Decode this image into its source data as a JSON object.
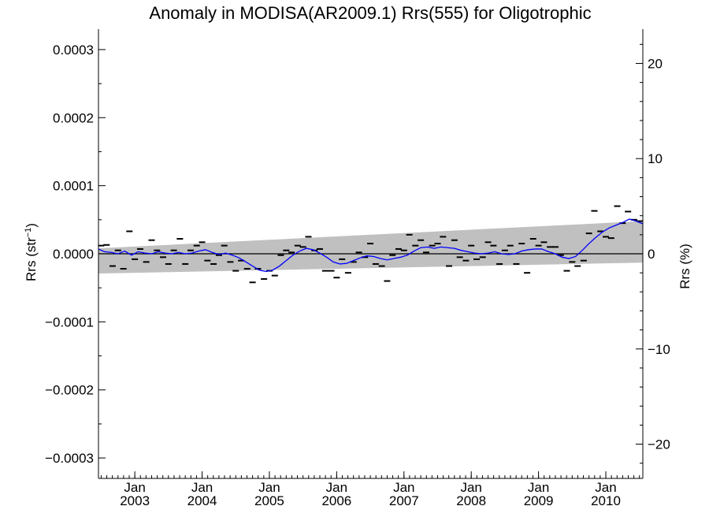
{
  "chart_data": {
    "type": "scatter",
    "title": "Anomaly in MODISA(AR2009.1) Rrs(555) for Oligotrophic",
    "ylabel_left": {
      "base": "Rrs (str",
      "sup": "−1",
      "close": ")"
    },
    "ylabel_right": "Rrs (%)",
    "xlim": [
      2002.46,
      2010.55
    ],
    "ylim": [
      -0.00033,
      0.00033
    ],
    "ylim_right": [
      -23.6,
      23.6
    ],
    "grid": false,
    "x_ticks": [
      {
        "value": 2003.0,
        "month": "Jan",
        "year": "2003"
      },
      {
        "value": 2004.0,
        "month": "Jan",
        "year": "2004"
      },
      {
        "value": 2005.0,
        "month": "Jan",
        "year": "2005"
      },
      {
        "value": 2006.0,
        "month": "Jan",
        "year": "2006"
      },
      {
        "value": 2007.0,
        "month": "Jan",
        "year": "2007"
      },
      {
        "value": 2008.0,
        "month": "Jan",
        "year": "2008"
      },
      {
        "value": 2009.0,
        "month": "Jan",
        "year": "2009"
      },
      {
        "value": 2010.0,
        "month": "Jan",
        "year": "2010"
      }
    ],
    "y_ticks_left": [
      {
        "value": 0.0003,
        "label": "0.0003"
      },
      {
        "value": 0.0002,
        "label": "0.0002"
      },
      {
        "value": 0.0001,
        "label": "0.0001"
      },
      {
        "value": 0.0,
        "label": "0.0000"
      },
      {
        "value": -0.0001,
        "label": "−0.0001"
      },
      {
        "value": -0.0002,
        "label": "−0.0002"
      },
      {
        "value": -0.0003,
        "label": "−0.0003"
      }
    ],
    "y_ticks_right": [
      {
        "value": 20,
        "label": "20"
      },
      {
        "value": 10,
        "label": "10"
      },
      {
        "value": 0,
        "label": "0"
      },
      {
        "value": -10,
        "label": "−10"
      },
      {
        "value": -20,
        "label": "−20"
      }
    ],
    "uncertainty_band": {
      "x": [
        2002.46,
        2010.55
      ],
      "upper": [
        8e-06,
        4.8e-05
      ],
      "lower": [
        -2.9e-05,
        -1.3e-05
      ]
    },
    "zero_line": 0,
    "monthly_points": [
      {
        "x": 2002.5,
        "y": 1.2e-05
      },
      {
        "x": 2002.58,
        "y": 1.3e-05
      },
      {
        "x": 2002.67,
        "y": -1.8e-05
      },
      {
        "x": 2002.75,
        "y": 5e-06
      },
      {
        "x": 2002.83,
        "y": -2.2e-05
      },
      {
        "x": 2002.92,
        "y": 3.3e-05
      },
      {
        "x": 2003.0,
        "y": -8e-06
      },
      {
        "x": 2003.08,
        "y": 7e-06
      },
      {
        "x": 2003.17,
        "y": -1.2e-05
      },
      {
        "x": 2003.25,
        "y": 2e-05
      },
      {
        "x": 2003.33,
        "y": 5e-06
      },
      {
        "x": 2003.42,
        "y": -5e-06
      },
      {
        "x": 2003.5,
        "y": -1.5e-05
      },
      {
        "x": 2003.58,
        "y": 5e-06
      },
      {
        "x": 2003.67,
        "y": 2.2e-05
      },
      {
        "x": 2003.75,
        "y": -1.5e-05
      },
      {
        "x": 2003.83,
        "y": 5e-06
      },
      {
        "x": 2003.92,
        "y": 1.2e-05
      },
      {
        "x": 2004.0,
        "y": 1.7e-05
      },
      {
        "x": 2004.08,
        "y": -1e-05
      },
      {
        "x": 2004.17,
        "y": -1.5e-05
      },
      {
        "x": 2004.25,
        "y": -2e-06
      },
      {
        "x": 2004.33,
        "y": 1.2e-05
      },
      {
        "x": 2004.42,
        "y": -1.2e-05
      },
      {
        "x": 2004.5,
        "y": -2.5e-05
      },
      {
        "x": 2004.58,
        "y": -1e-05
      },
      {
        "x": 2004.67,
        "y": -2.2e-05
      },
      {
        "x": 2004.75,
        "y": -4.2e-05
      },
      {
        "x": 2004.83,
        "y": -2.2e-05
      },
      {
        "x": 2004.92,
        "y": -3.7e-05
      },
      {
        "x": 2005.0,
        "y": -2.5e-05
      },
      {
        "x": 2005.08,
        "y": -3.2e-05
      },
      {
        "x": 2005.17,
        "y": -2e-06
      },
      {
        "x": 2005.25,
        "y": 5e-06
      },
      {
        "x": 2005.33,
        "y": 2e-06
      },
      {
        "x": 2005.42,
        "y": 1.2e-05
      },
      {
        "x": 2005.5,
        "y": 1e-05
      },
      {
        "x": 2005.58,
        "y": 2.5e-05
      },
      {
        "x": 2005.67,
        "y": 5e-06
      },
      {
        "x": 2005.75,
        "y": 7e-06
      },
      {
        "x": 2005.83,
        "y": -2.5e-05
      },
      {
        "x": 2005.92,
        "y": -2.5e-05
      },
      {
        "x": 2006.0,
        "y": -3.5e-05
      },
      {
        "x": 2006.08,
        "y": -8e-06
      },
      {
        "x": 2006.17,
        "y": -2.8e-05
      },
      {
        "x": 2006.25,
        "y": -1.2e-05
      },
      {
        "x": 2006.33,
        "y": 2e-06
      },
      {
        "x": 2006.42,
        "y": -5e-06
      },
      {
        "x": 2006.5,
        "y": 1.5e-05
      },
      {
        "x": 2006.58,
        "y": -1.5e-05
      },
      {
        "x": 2006.67,
        "y": -1.8e-05
      },
      {
        "x": 2006.75,
        "y": -4e-05
      },
      {
        "x": 2006.83,
        "y": -2e-06
      },
      {
        "x": 2006.92,
        "y": 7e-06
      },
      {
        "x": 2007.0,
        "y": 5e-06
      },
      {
        "x": 2007.08,
        "y": 2.8e-05
      },
      {
        "x": 2007.17,
        "y": 1.2e-05
      },
      {
        "x": 2007.25,
        "y": 2e-05
      },
      {
        "x": 2007.33,
        "y": 2e-06
      },
      {
        "x": 2007.42,
        "y": 1.2e-05
      },
      {
        "x": 2007.5,
        "y": 1.5e-05
      },
      {
        "x": 2007.58,
        "y": 2.5e-05
      },
      {
        "x": 2007.67,
        "y": -1.8e-05
      },
      {
        "x": 2007.75,
        "y": 2e-05
      },
      {
        "x": 2007.83,
        "y": -5e-06
      },
      {
        "x": 2007.92,
        "y": -1e-05
      },
      {
        "x": 2008.0,
        "y": 1.2e-05
      },
      {
        "x": 2008.08,
        "y": -8e-06
      },
      {
        "x": 2008.17,
        "y": -5e-06
      },
      {
        "x": 2008.25,
        "y": 1.7e-05
      },
      {
        "x": 2008.33,
        "y": 1.2e-05
      },
      {
        "x": 2008.42,
        "y": -1.5e-05
      },
      {
        "x": 2008.5,
        "y": 5e-06
      },
      {
        "x": 2008.58,
        "y": 1.2e-05
      },
      {
        "x": 2008.67,
        "y": -1.5e-05
      },
      {
        "x": 2008.75,
        "y": 1.5e-05
      },
      {
        "x": 2008.83,
        "y": -2.8e-05
      },
      {
        "x": 2008.92,
        "y": 2.2e-05
      },
      {
        "x": 2009.0,
        "y": 1.2e-05
      },
      {
        "x": 2009.08,
        "y": 1.7e-05
      },
      {
        "x": 2009.17,
        "y": 1e-05
      },
      {
        "x": 2009.25,
        "y": 1e-05
      },
      {
        "x": 2009.33,
        "y": -2e-06
      },
      {
        "x": 2009.42,
        "y": -2.5e-05
      },
      {
        "x": 2009.5,
        "y": -1.2e-05
      },
      {
        "x": 2009.58,
        "y": -1.8e-05
      },
      {
        "x": 2009.67,
        "y": -1e-05
      },
      {
        "x": 2009.75,
        "y": 3e-05
      },
      {
        "x": 2009.83,
        "y": 6.3e-05
      },
      {
        "x": 2009.92,
        "y": 3.3e-05
      },
      {
        "x": 2010.0,
        "y": 2.5e-05
      },
      {
        "x": 2010.08,
        "y": 2.3e-05
      },
      {
        "x": 2010.17,
        "y": 7e-05
      },
      {
        "x": 2010.25,
        "y": 4.5e-05
      },
      {
        "x": 2010.33,
        "y": 6.2e-05
      },
      {
        "x": 2010.42,
        "y": 5e-05
      },
      {
        "x": 2010.5,
        "y": 4.8e-05
      }
    ],
    "running_mean": {
      "x": [
        2002.46,
        2002.55,
        2002.65,
        2002.75,
        2002.85,
        2002.95,
        2003.05,
        2003.15,
        2003.25,
        2003.35,
        2003.45,
        2003.55,
        2003.65,
        2003.75,
        2003.85,
        2003.95,
        2004.05,
        2004.15,
        2004.25,
        2004.35,
        2004.45,
        2004.55,
        2004.65,
        2004.75,
        2004.85,
        2004.95,
        2005.05,
        2005.15,
        2005.25,
        2005.35,
        2005.45,
        2005.55,
        2005.65,
        2005.75,
        2005.85,
        2005.95,
        2006.05,
        2006.15,
        2006.25,
        2006.35,
        2006.45,
        2006.55,
        2006.65,
        2006.75,
        2006.85,
        2006.95,
        2007.05,
        2007.15,
        2007.25,
        2007.35,
        2007.45,
        2007.55,
        2007.65,
        2007.75,
        2007.85,
        2007.95,
        2008.05,
        2008.15,
        2008.25,
        2008.35,
        2008.45,
        2008.55,
        2008.65,
        2008.75,
        2008.85,
        2008.95,
        2009.05,
        2009.15,
        2009.25,
        2009.35,
        2009.45,
        2009.55,
        2009.65,
        2009.75,
        2009.85,
        2009.95,
        2010.05,
        2010.15,
        2010.25,
        2010.35,
        2010.45,
        2010.55
      ],
      "y": [
        7e-06,
        3e-06,
        2e-06,
        0.0,
        4e-06,
        -2e-06,
        3e-06,
        1e-06,
        0.0,
        3e-06,
        1e-06,
        0.0,
        2e-06,
        0.0,
        1e-06,
        4e-06,
        6e-06,
        2e-06,
        -1e-06,
        1e-06,
        -2e-06,
        -6e-06,
        -1.2e-05,
        -1.8e-05,
        -2.4e-05,
        -2.6e-05,
        -2.4e-05,
        -1.8e-05,
        -1e-05,
        -2e-06,
        4e-06,
        8e-06,
        6e-06,
        1e-06,
        -5e-06,
        -1.2e-05,
        -1.5e-05,
        -1.4e-05,
        -1e-05,
        -6e-06,
        -3e-06,
        -4e-06,
        -7e-06,
        -9e-06,
        -7e-06,
        -5e-06,
        -2e-06,
        4e-06,
        9e-06,
        1e-05,
        8e-06,
        1e-05,
        9e-06,
        8e-06,
        5e-06,
        3e-06,
        1e-06,
        0.0,
        1e-06,
        3e-06,
        0.0,
        -1e-06,
        0.0,
        4e-06,
        6e-06,
        7e-06,
        7e-06,
        3e-06,
        0.0,
        -5e-06,
        -7e-06,
        -4e-06,
        5e-06,
        1.5e-05,
        2.4e-05,
        3.2e-05,
        3.8e-05,
        4.2e-05,
        4.6e-05,
        5.1e-05,
        4.8e-05,
        4.4e-05
      ]
    },
    "colors": {
      "band": "#c0c0c0",
      "running_mean": "#0000ff",
      "points": "#000000",
      "zero_line": "#000000",
      "axes": "#000000"
    }
  }
}
